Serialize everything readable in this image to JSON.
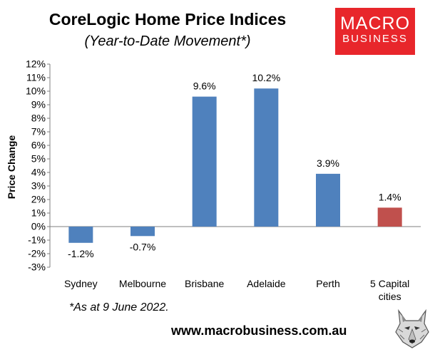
{
  "title": "CoreLogic Home Price Indices",
  "subtitle": "(Year-to-Date Movement*)",
  "logo": {
    "line1": "MACRO",
    "line2": "BUSINESS",
    "color": "#e8262b"
  },
  "footnote": "*As at 9 June 2022.",
  "website": "www.macrobusiness.com.au",
  "chart_data": {
    "type": "bar",
    "categories": [
      [
        "Sydney"
      ],
      [
        "Melbourne"
      ],
      [
        "Brisbane"
      ],
      [
        "Adelaide"
      ],
      [
        "Perth"
      ],
      [
        "5 Capital",
        "cities"
      ]
    ],
    "values": [
      -1.2,
      -0.7,
      9.6,
      10.2,
      3.9,
      1.4
    ],
    "data_labels": [
      "-1.2%",
      "-0.7%",
      "9.6%",
      "10.2%",
      "3.9%",
      "1.4%"
    ],
    "bar_colors": [
      "#4f81bd",
      "#4f81bd",
      "#4f81bd",
      "#4f81bd",
      "#4f81bd",
      "#c0504d"
    ],
    "ylabel": "Price Change",
    "ylim": [
      -3,
      12
    ],
    "yticks": [
      12,
      11,
      10,
      9,
      8,
      7,
      6,
      5,
      4,
      3,
      2,
      1,
      0,
      -1,
      -2,
      -3
    ],
    "ytick_labels": [
      "12%",
      "11%",
      "10%",
      "9%",
      "8%",
      "7%",
      "6%",
      "5%",
      "4%",
      "3%",
      "2%",
      "1%",
      "0%",
      "-1%",
      "-2%",
      "-3%"
    ],
    "grid": false,
    "legend": "none"
  }
}
